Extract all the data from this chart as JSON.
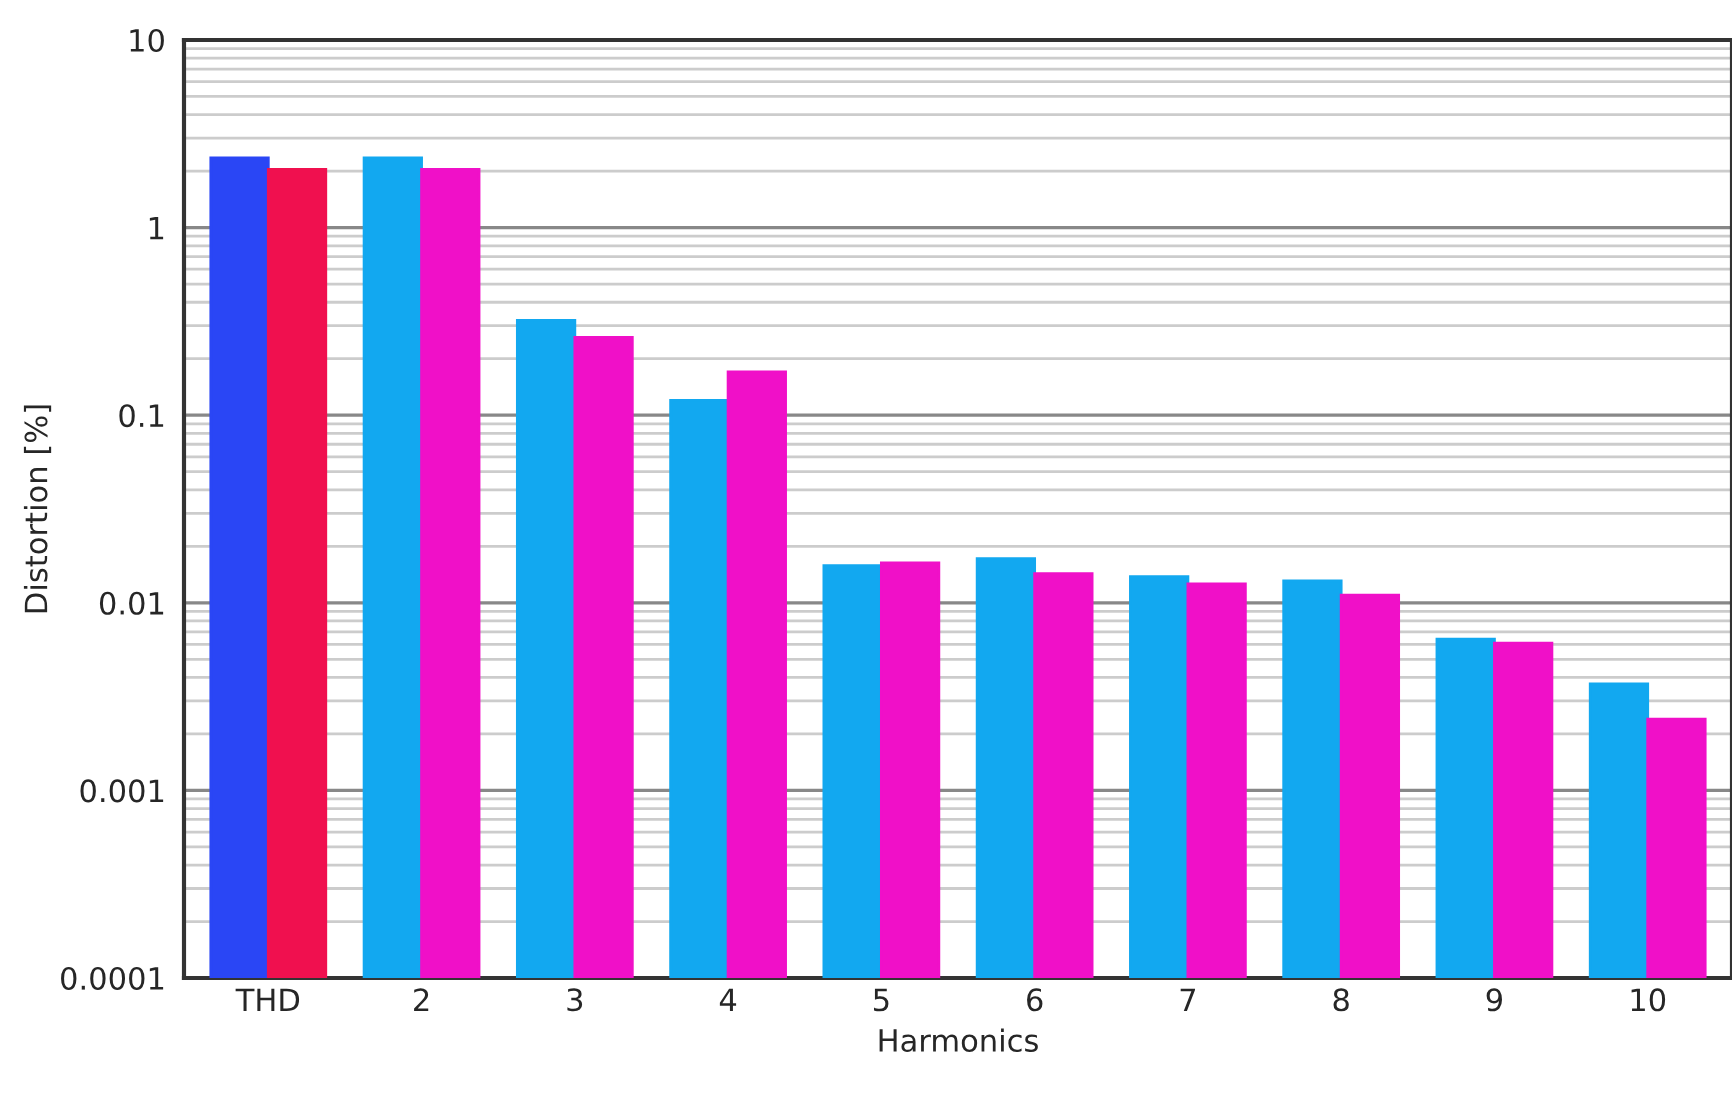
{
  "chart_data": {
    "type": "bar",
    "xlabel": "Harmonics",
    "ylabel": "Distortion [%]",
    "categories": [
      "THD",
      "2",
      "3",
      "4",
      "5",
      "6",
      "7",
      "8",
      "9",
      "10"
    ],
    "series": [
      {
        "colors": [
          "#2a46f5",
          "#12a8f0",
          "#12a8f0",
          "#12a8f0",
          "#12a8f0",
          "#12a8f0",
          "#12a8f0",
          "#12a8f0",
          "#12a8f0",
          "#12a8f0"
        ],
        "values": [
          2.35,
          2.35,
          0.32,
          0.12,
          0.0158,
          0.0172,
          0.0138,
          0.0131,
          0.0064,
          0.0037
        ]
      },
      {
        "colors": [
          "#f0104f",
          "#f010c8",
          "#f010c8",
          "#f010c8",
          "#f010c8",
          "#f010c8",
          "#f010c8",
          "#f010c8",
          "#f010c8",
          "#f010c8"
        ],
        "values": [
          2.04,
          2.04,
          0.26,
          0.17,
          0.0163,
          0.0143,
          0.0126,
          0.011,
          0.0061,
          0.0024
        ]
      }
    ],
    "log": true,
    "ylim": [
      0.0001,
      10
    ],
    "yticks": [
      0.0001,
      0.001,
      0.01,
      0.1,
      1,
      10
    ],
    "grid": "y"
  }
}
